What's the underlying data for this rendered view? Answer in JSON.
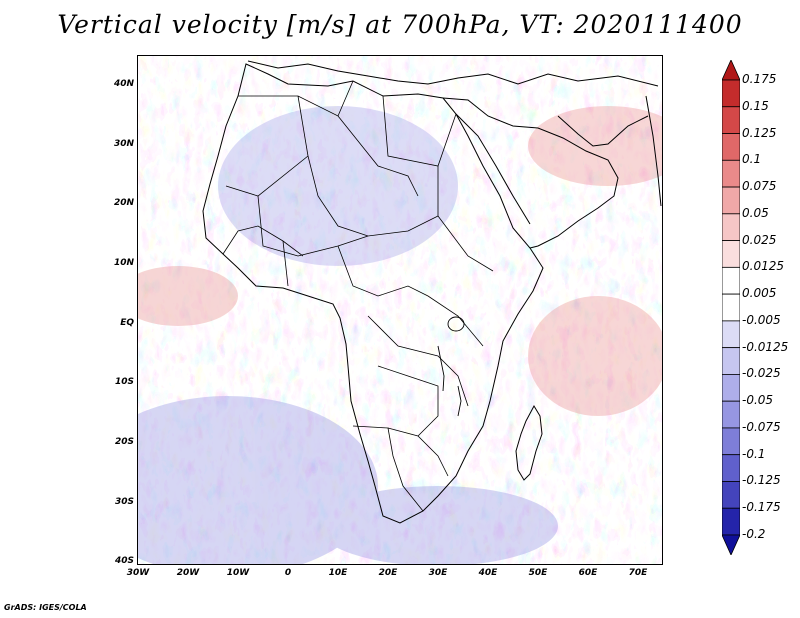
{
  "title": "Vertical velocity [m/s] at 700hPa, VT: 2020111400",
  "credit": "GrADS: IGES/COLA",
  "map": {
    "region": "Africa",
    "variable": "vertical velocity",
    "units": "m/s",
    "level": "700hPa",
    "lon_range": [
      -30,
      75
    ],
    "lat_range": [
      -40,
      45
    ],
    "lat_ticks": [
      "40N",
      "30N",
      "20N",
      "10N",
      "EQ",
      "10S",
      "20S",
      "30S",
      "40S"
    ],
    "lon_ticks": [
      "30W",
      "20W",
      "10W",
      "0",
      "10E",
      "20E",
      "30E",
      "40E",
      "50E",
      "60E",
      "70E"
    ]
  },
  "colorbar": {
    "labels": [
      "0.175",
      "0.15",
      "0.125",
      "0.1",
      "0.075",
      "0.05",
      "0.025",
      "0.0125",
      "0.005",
      "-0.005",
      "-0.0125",
      "-0.025",
      "-0.05",
      "-0.075",
      "-0.1",
      "-0.125",
      "-0.175",
      "-0.2"
    ],
    "colors": [
      "#b01818",
      "#c42c2c",
      "#d44848",
      "#e06868",
      "#ea8a8a",
      "#f0a8a8",
      "#f6c6c6",
      "#fadede",
      "#ffffff",
      "#ffffff",
      "#dcdcf6",
      "#c6c6f0",
      "#aeaeea",
      "#9696e2",
      "#7e7ed8",
      "#6060cc",
      "#4444bc",
      "#2424aa",
      "#10109a"
    ]
  }
}
